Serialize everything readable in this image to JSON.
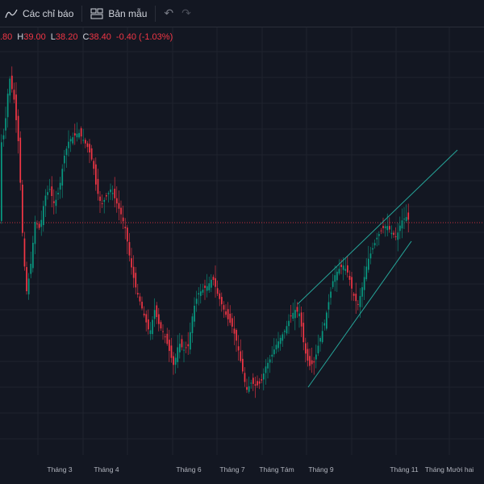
{
  "toolbar": {
    "indicators_label": "Các chỉ báo",
    "templates_label": "Bản mẫu"
  },
  "legend": {
    "open_value": ".80",
    "high_key": "H",
    "high_value": "39.00",
    "low_key": "L",
    "low_value": "38.20",
    "close_key": "C",
    "close_value": "38.40",
    "change_value": "-0.40 (-1.03%)"
  },
  "colors": {
    "background": "#131722",
    "grid": "#1f232e",
    "up": "#089981",
    "down": "#f23645",
    "price_line": "#f23645",
    "channel": "#26a69a"
  },
  "chart_data": {
    "type": "candlestick",
    "x_axis_labels": [
      "Tháng 3",
      "Tháng 4",
      "Tháng 6",
      "Tháng 7",
      "Tháng Tám",
      "Tháng 9",
      "Tháng 11",
      "Tháng Mười hai"
    ],
    "last_close": 38.4,
    "drawings": [
      "rising wedge / channel trendlines"
    ]
  }
}
